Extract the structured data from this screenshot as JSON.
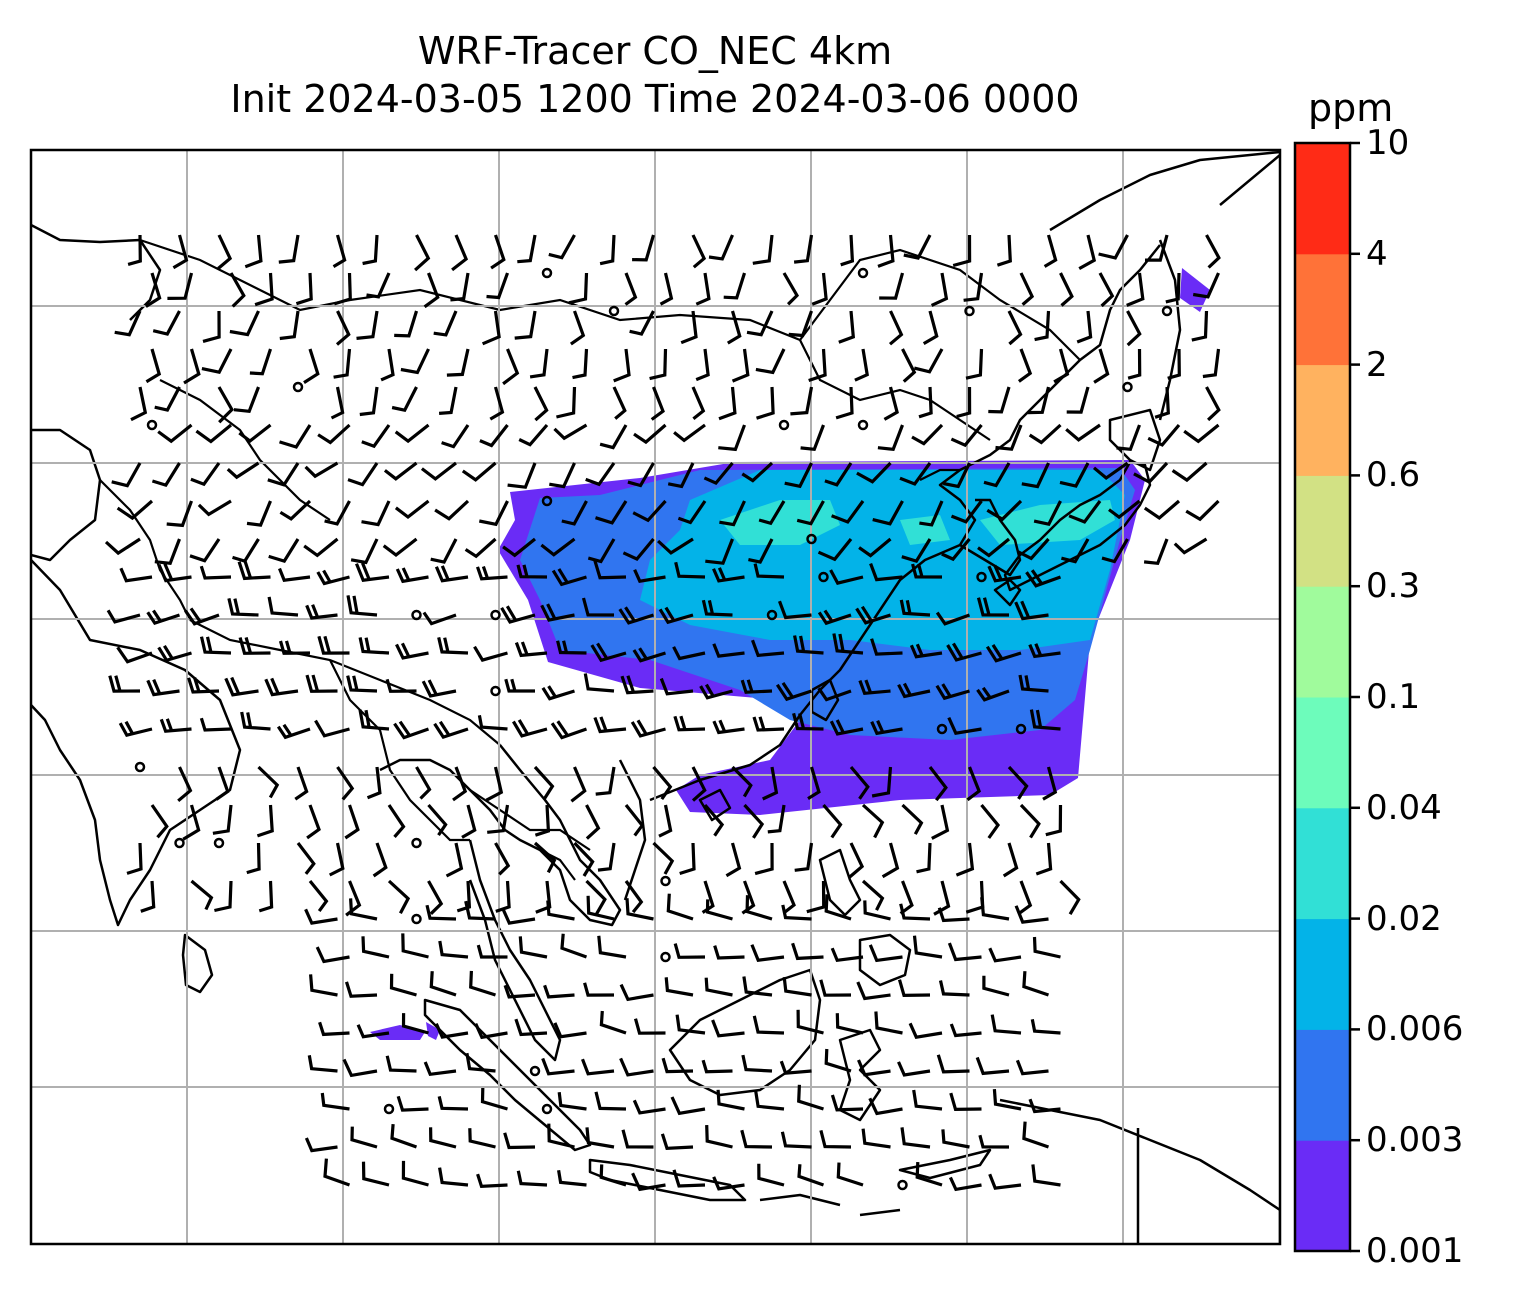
{
  "title": {
    "line1": "WRF-Tracer CO_NEC 4km",
    "line2": "Init 2024-03-05 1200 Time 2024-03-06 0000"
  },
  "colorbar": {
    "units": "ppm",
    "ticks": [
      "0.001",
      "0.003",
      "0.006",
      "0.02",
      "0.04",
      "0.1",
      "0.3",
      "0.6",
      "2",
      "4",
      "10"
    ],
    "colors": [
      "#6a2cf6",
      "#3075f0",
      "#03b3e8",
      "#31e0d6",
      "#6dfcbb",
      "#a0fb9c",
      "#d2e184",
      "#ffb25f",
      "#ff7238",
      "#ff2b16"
    ]
  },
  "map": {
    "colors": {
      "land_line": "#000000",
      "grid": "#b0b0b0"
    },
    "tracer_plume": "CO_NEC"
  }
}
